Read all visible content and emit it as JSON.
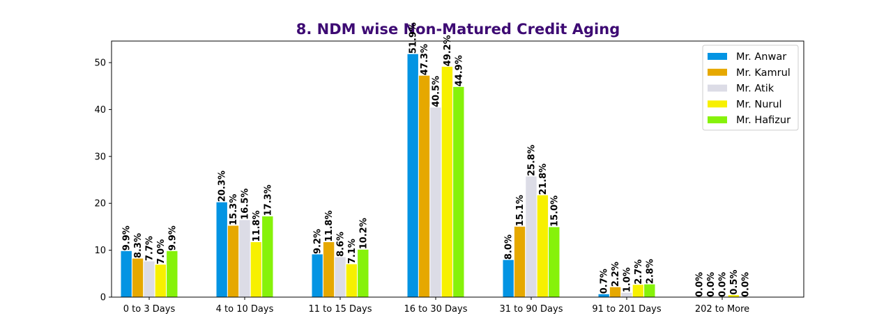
{
  "chart_data": {
    "type": "bar",
    "title": "8. NDM wise Non-Matured Credit Aging",
    "title_color": "#3d0a73",
    "xlabel": "",
    "ylabel": "",
    "categories": [
      "0 to 3 Days",
      "4 to 10 Days",
      "11 to 15 Days",
      "16 to 30 Days",
      "31 to 90 Days",
      "91 to 201 Days",
      "202 to More"
    ],
    "ylim": [
      0,
      54.6
    ],
    "yticks": [
      0,
      10,
      20,
      30,
      40,
      50
    ],
    "grid": false,
    "legend_position": "top-right",
    "series": [
      {
        "name": "Mr. Anwar",
        "color": "#0394e3",
        "values": [
          9.9,
          20.3,
          9.2,
          51.9,
          8.0,
          0.7,
          0.0
        ],
        "labels": [
          "9.9%",
          "20.3%",
          "9.2%",
          "51.9%",
          "8.0%",
          "0.7%",
          "0.0%"
        ]
      },
      {
        "name": "Mr. Kamrul",
        "color": "#e6a800",
        "values": [
          8.3,
          15.3,
          11.8,
          47.3,
          15.1,
          2.2,
          0.0
        ],
        "labels": [
          "8.3%",
          "15.3%",
          "11.8%",
          "47.3%",
          "15.1%",
          "2.2%",
          "0.0%"
        ]
      },
      {
        "name": "Mr. Atik",
        "color": "#dcdce6",
        "values": [
          7.7,
          16.5,
          8.6,
          40.5,
          25.8,
          1.0,
          0.0
        ],
        "labels": [
          "7.7%",
          "16.5%",
          "8.6%",
          "40.5%",
          "25.8%",
          "1.0%",
          "0.0%"
        ]
      },
      {
        "name": "Mr. Nurul",
        "color": "#f7f000",
        "values": [
          7.0,
          11.8,
          7.1,
          49.2,
          21.8,
          2.7,
          0.5
        ],
        "labels": [
          "7.0%",
          "11.8%",
          "7.1%",
          "49.2%",
          "21.8%",
          "2.7%",
          "0.5%"
        ]
      },
      {
        "name": "Mr. Hafizur",
        "color": "#86f20a",
        "values": [
          9.9,
          17.3,
          10.2,
          44.9,
          15.0,
          2.8,
          0.0
        ],
        "labels": [
          "9.9%",
          "17.3%",
          "10.2%",
          "44.9%",
          "15.0%",
          "2.8%",
          "0.0%"
        ]
      }
    ]
  }
}
